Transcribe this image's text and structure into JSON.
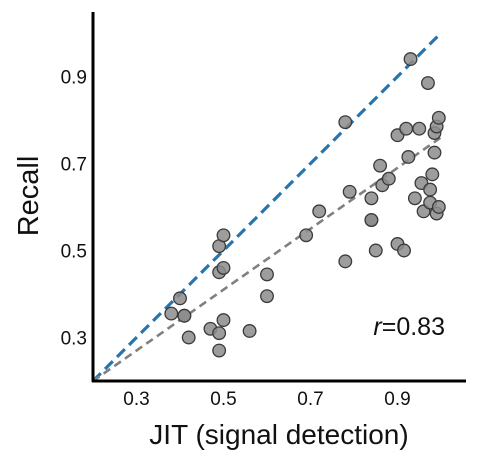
{
  "chart_data": {
    "type": "scatter",
    "title": "",
    "xlabel": "JIT (signal detection)",
    "ylabel": "Recall",
    "xlim": [
      0.2,
      1.05
    ],
    "ylim": [
      0.2,
      1.05
    ],
    "xticks": [
      "0.3",
      "0.5",
      "0.7",
      "0.9"
    ],
    "yticks": [
      "0.3",
      "0.5",
      "0.7",
      "0.9"
    ],
    "grid": false,
    "annotation": {
      "var": "r",
      "rest": "=0.83"
    },
    "point_color": "#8c8c8c",
    "identity_line": {
      "color": "#2475b0",
      "x": [
        0.2,
        1.0
      ],
      "y": [
        0.2,
        1.0
      ]
    },
    "fit_line": {
      "color": "#808080",
      "x": [
        0.2,
        1.0
      ],
      "y": [
        0.2,
        0.76
      ]
    },
    "points": [
      {
        "x": 0.38,
        "y": 0.355
      },
      {
        "x": 0.4,
        "y": 0.39
      },
      {
        "x": 0.41,
        "y": 0.35
      },
      {
        "x": 0.41,
        "y": 0.35
      },
      {
        "x": 0.42,
        "y": 0.3
      },
      {
        "x": 0.47,
        "y": 0.32
      },
      {
        "x": 0.49,
        "y": 0.31
      },
      {
        "x": 0.49,
        "y": 0.27
      },
      {
        "x": 0.5,
        "y": 0.34
      },
      {
        "x": 0.49,
        "y": 0.45
      },
      {
        "x": 0.49,
        "y": 0.51
      },
      {
        "x": 0.5,
        "y": 0.46
      },
      {
        "x": 0.5,
        "y": 0.535
      },
      {
        "x": 0.56,
        "y": 0.315
      },
      {
        "x": 0.6,
        "y": 0.445
      },
      {
        "x": 0.6,
        "y": 0.395
      },
      {
        "x": 0.69,
        "y": 0.535
      },
      {
        "x": 0.72,
        "y": 0.59
      },
      {
        "x": 0.78,
        "y": 0.795
      },
      {
        "x": 0.78,
        "y": 0.475
      },
      {
        "x": 0.79,
        "y": 0.635
      },
      {
        "x": 0.84,
        "y": 0.57
      },
      {
        "x": 0.84,
        "y": 0.57
      },
      {
        "x": 0.84,
        "y": 0.62
      },
      {
        "x": 0.85,
        "y": 0.5
      },
      {
        "x": 0.86,
        "y": 0.695
      },
      {
        "x": 0.865,
        "y": 0.65
      },
      {
        "x": 0.88,
        "y": 0.665
      },
      {
        "x": 0.9,
        "y": 0.765
      },
      {
        "x": 0.9,
        "y": 0.515
      },
      {
        "x": 0.915,
        "y": 0.5
      },
      {
        "x": 0.92,
        "y": 0.78
      },
      {
        "x": 0.925,
        "y": 0.715
      },
      {
        "x": 0.93,
        "y": 0.94
      },
      {
        "x": 0.94,
        "y": 0.62
      },
      {
        "x": 0.95,
        "y": 0.78
      },
      {
        "x": 0.955,
        "y": 0.655
      },
      {
        "x": 0.96,
        "y": 0.59
      },
      {
        "x": 0.97,
        "y": 0.885
      },
      {
        "x": 0.975,
        "y": 0.64
      },
      {
        "x": 0.975,
        "y": 0.61
      },
      {
        "x": 0.98,
        "y": 0.675
      },
      {
        "x": 0.985,
        "y": 0.725
      },
      {
        "x": 0.985,
        "y": 0.77
      },
      {
        "x": 0.99,
        "y": 0.585
      },
      {
        "x": 0.99,
        "y": 0.785
      },
      {
        "x": 0.995,
        "y": 0.805
      },
      {
        "x": 0.995,
        "y": 0.6
      }
    ]
  }
}
